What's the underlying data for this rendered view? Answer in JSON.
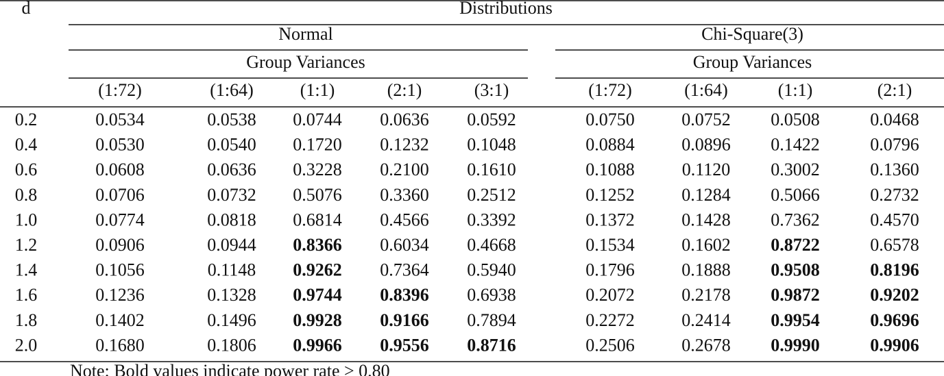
{
  "table": {
    "corner": "d",
    "header": "Distributions",
    "groups": [
      {
        "name": "Normal",
        "subheader": "Group Variances",
        "columns": [
          "(1:72)",
          "(1:64)",
          "(1:1)",
          "(2:1)",
          "(3:1)"
        ]
      },
      {
        "name": "Chi-Square(3)",
        "subheader": "Group Variances",
        "columns": [
          "(1:72)",
          "(1:64)",
          "(1:1)",
          "(2:1)"
        ]
      }
    ],
    "rows": [
      {
        "d": "0.2",
        "cells": [
          "0.0534",
          "0.0538",
          "0.0744",
          "0.0636",
          "0.0592",
          "0.0750",
          "0.0752",
          "0.0508",
          "0.0468"
        ],
        "bold": []
      },
      {
        "d": "0.4",
        "cells": [
          "0.0530",
          "0.0540",
          "0.1720",
          "0.1232",
          "0.1048",
          "0.0884",
          "0.0896",
          "0.1422",
          "0.0796"
        ],
        "bold": []
      },
      {
        "d": "0.6",
        "cells": [
          "0.0608",
          "0.0636",
          "0.3228",
          "0.2100",
          "0.1610",
          "0.1088",
          "0.1120",
          "0.3002",
          "0.1360"
        ],
        "bold": []
      },
      {
        "d": "0.8",
        "cells": [
          "0.0706",
          "0.0732",
          "0.5076",
          "0.3360",
          "0.2512",
          "0.1252",
          "0.1284",
          "0.5066",
          "0.2732"
        ],
        "bold": []
      },
      {
        "d": "1.0",
        "cells": [
          "0.0774",
          "0.0818",
          "0.6814",
          "0.4566",
          "0.3392",
          "0.1372",
          "0.1428",
          "0.7362",
          "0.4570"
        ],
        "bold": []
      },
      {
        "d": "1.2",
        "cells": [
          "0.0906",
          "0.0944",
          "0.8366",
          "0.6034",
          "0.4668",
          "0.1534",
          "0.1602",
          "0.8722",
          "0.6578"
        ],
        "bold": [
          2,
          7
        ]
      },
      {
        "d": "1.4",
        "cells": [
          "0.1056",
          "0.1148",
          "0.9262",
          "0.7364",
          "0.5940",
          "0.1796",
          "0.1888",
          "0.9508",
          "0.8196"
        ],
        "bold": [
          2,
          7,
          8
        ]
      },
      {
        "d": "1.6",
        "cells": [
          "0.1236",
          "0.1328",
          "0.9744",
          "0.8396",
          "0.6938",
          "0.2072",
          "0.2178",
          "0.9872",
          "0.9202"
        ],
        "bold": [
          2,
          3,
          7,
          8
        ]
      },
      {
        "d": "1.8",
        "cells": [
          "0.1402",
          "0.1496",
          "0.9928",
          "0.9166",
          "0.7894",
          "0.2272",
          "0.2414",
          "0.9954",
          "0.9696"
        ],
        "bold": [
          2,
          3,
          7,
          8
        ]
      },
      {
        "d": "2.0",
        "cells": [
          "0.1680",
          "0.1806",
          "0.9966",
          "0.9556",
          "0.8716",
          "0.2506",
          "0.2678",
          "0.9990",
          "0.9906"
        ],
        "bold": [
          2,
          3,
          4,
          7,
          8
        ]
      }
    ]
  },
  "note": "Note: Bold values indicate power rate > 0.80"
}
